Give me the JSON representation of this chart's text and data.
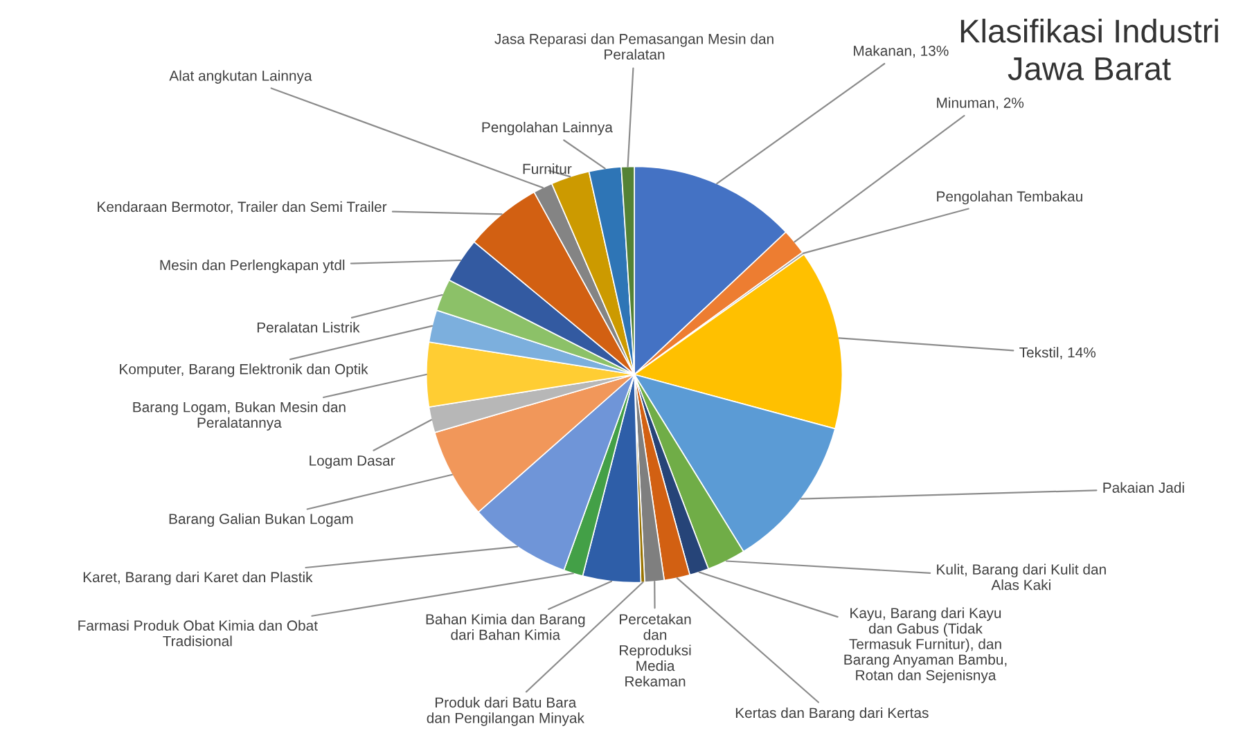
{
  "chart_data": {
    "type": "pie",
    "title": "Klasifikasi Industri Jawa Barat",
    "categories": [
      "Makanan",
      "Minuman",
      "Pengolahan Tembakau",
      "Tekstil",
      "Pakaian Jadi",
      "Kulit, Barang dari Kulit dan Alas Kaki",
      "Kayu, Barang dari Kayu dan Gabus (Tidak Termasuk Furnitur), dan Barang Anyaman Bambu, Rotan dan Sejenisnya",
      "Kertas dan Barang dari Kertas",
      "Percetakan dan Reproduksi Media Rekaman",
      "Produk dari Batu Bara dan Pengilangan Minyak",
      "Bahan Kimia dan Barang dari Bahan Kimia",
      "Farmasi Produk Obat Kimia dan Obat Tradisional",
      "Karet, Barang dari Karet dan Plastik",
      "Barang Galian Bukan Logam",
      "Logam Dasar",
      "Barang Logam, Bukan Mesin dan Peralatannya",
      "Komputer, Barang Elektronik dan Optik",
      "Peralatan Listrik",
      "Mesin dan Perlengkapan ytdl",
      "Kendaraan Bermotor, Trailer dan Semi Trailer",
      "Alat angkutan Lainnya",
      "Furnitur",
      "Pengolahan Lainnya",
      "Jasa Reparasi dan Pemasangan Mesin dan Peralatan"
    ],
    "values": [
      13,
      2,
      0.2,
      14,
      12,
      3,
      1.5,
      2,
      1.5,
      0.3,
      4.5,
      1.5,
      8,
      7,
      2,
      5,
      2.5,
      2.5,
      3.5,
      6,
      1.5,
      3,
      2.5,
      1
    ],
    "colors": [
      "#4472c4",
      "#ed7d31",
      "#a5a5a5",
      "#ffc000",
      "#5b9bd5",
      "#70ad47",
      "#264478",
      "#d26012",
      "#7f7f7f",
      "#997300",
      "#2e5ea8",
      "#43a047",
      "#6f95d8",
      "#f1975a",
      "#b7b7b7",
      "#ffcd33",
      "#7cafdd",
      "#8cc168",
      "#335aa1",
      "#d26012",
      "#848484",
      "#cc9a00",
      "#2e75b6",
      "#548235"
    ],
    "value_labels": [
      "13%",
      "2%",
      null,
      "14%",
      null,
      null,
      null,
      null,
      null,
      null,
      null,
      null,
      null,
      null,
      null,
      null,
      null,
      null,
      null,
      null,
      null,
      null,
      null,
      null
    ]
  }
}
